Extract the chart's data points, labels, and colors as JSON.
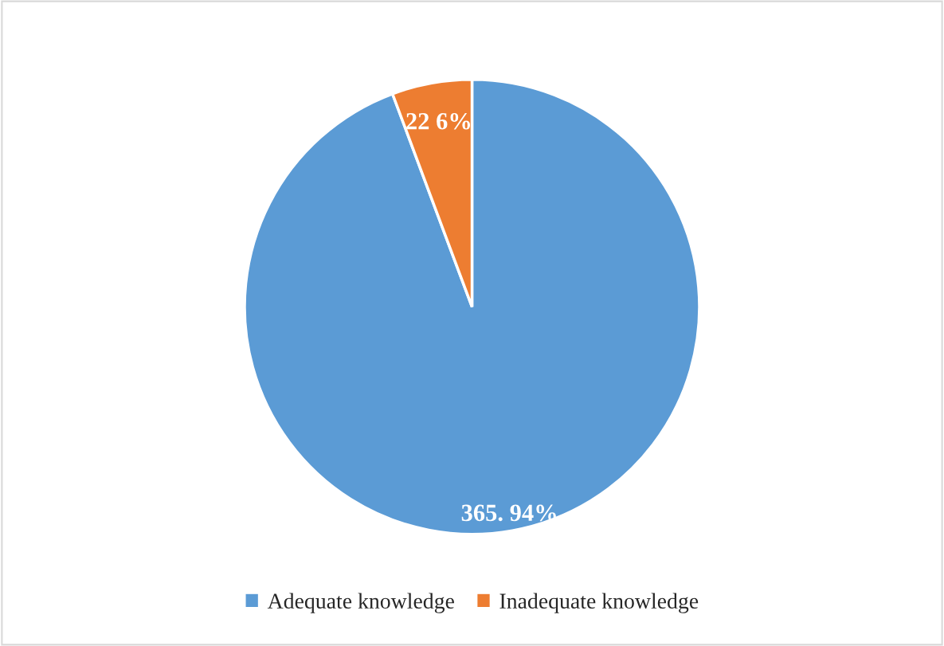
{
  "chart_data": {
    "type": "pie",
    "categories": [
      "Adequate knowledge",
      "Inadequate knowledge"
    ],
    "values": [
      365,
      22
    ],
    "colors": [
      "#5b9bd5",
      "#ed7d31"
    ],
    "value_labels": [
      "365. 94%",
      "22 6%"
    ],
    "legend": "bottom"
  }
}
